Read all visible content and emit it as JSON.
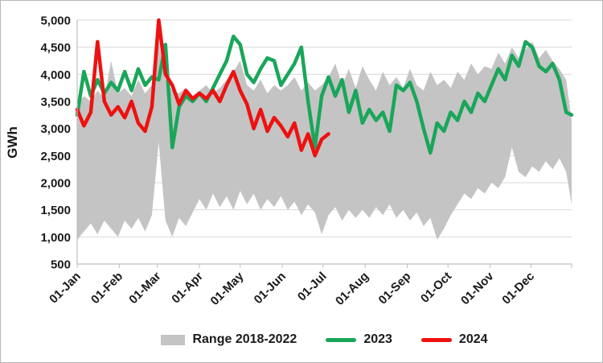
{
  "chart_data": {
    "type": "area",
    "description": "Daily GWh values: grey band = min/max range 2018-2022, green line = 2023, red line = 2024 (ends early July)",
    "title": "",
    "ylabel": "GWh",
    "ylim": [
      500,
      5000
    ],
    "y_tick_step": 500,
    "y_tick_labels": [
      "5,000",
      "4,500",
      "4,000",
      "3,500",
      "3,000",
      "2,500",
      "2,000",
      "1,500",
      "1,000",
      "500"
    ],
    "x_unit": "day of year",
    "x_tick_days": [
      1,
      32,
      60,
      91,
      121,
      152,
      182,
      213,
      244,
      274,
      305,
      335
    ],
    "x_tick_labels": [
      "01-Jan",
      "01-Feb",
      "01-Mar",
      "01-Apr",
      "01-May",
      "01-Jun",
      "01-Jul",
      "01-Aug",
      "01-Sep",
      "01-Oct",
      "01-Nov",
      "01-Dec"
    ],
    "grid": "horizontal",
    "legend_position": "bottom",
    "colors": {
      "range": "#c4c4c4",
      "y2023": "#1aa65a",
      "y2024": "#ee1111",
      "grid": "#d9d9d9",
      "axis": "#bfbfbf",
      "text": "#1a1a1a"
    },
    "legend": [
      {
        "label": "Range 2018-2022",
        "color": "#c4c4c4",
        "kind": "area"
      },
      {
        "label": "2023",
        "color": "#1aa65a",
        "kind": "line"
      },
      {
        "label": "2024",
        "color": "#ee1111",
        "kind": "line"
      }
    ],
    "sample_days": [
      1,
      6,
      11,
      16,
      21,
      26,
      31,
      36,
      41,
      46,
      51,
      56,
      61,
      66,
      71,
      76,
      81,
      86,
      91,
      96,
      101,
      106,
      111,
      116,
      121,
      126,
      131,
      136,
      141,
      146,
      151,
      156,
      161,
      166,
      171,
      176,
      181,
      186,
      191,
      196,
      201,
      206,
      211,
      216,
      221,
      226,
      231,
      236,
      241,
      246,
      251,
      256,
      261,
      266,
      271,
      276,
      281,
      286,
      291,
      296,
      301,
      306,
      311,
      316,
      321,
      326,
      331,
      336,
      341,
      346,
      351,
      356,
      361,
      365
    ],
    "range": {
      "label": "Range 2018-2022",
      "high": [
        3450,
        3600,
        3500,
        3700,
        3550,
        4250,
        3650,
        3750,
        3600,
        3900,
        3650,
        3800,
        4600,
        3900,
        3700,
        3650,
        3750,
        3600,
        3700,
        3800,
        3650,
        3750,
        3900,
        4050,
        4250,
        3800,
        3700,
        3900,
        3650,
        3800,
        3700,
        3800,
        3950,
        3700,
        3850,
        3700,
        3800,
        3950,
        4200,
        3800,
        4100,
        3750,
        4150,
        3900,
        3700,
        4050,
        3800,
        3950,
        3750,
        4100,
        3800,
        3700,
        4050,
        3800,
        3900,
        3750,
        4050,
        3900,
        4200,
        4000,
        4150,
        4100,
        4400,
        4200,
        4500,
        4300,
        4450,
        4600,
        4300,
        4450,
        4250,
        4100,
        3900,
        3150
      ],
      "low": [
        950,
        1100,
        1250,
        1050,
        1300,
        1150,
        1000,
        1300,
        1150,
        1350,
        1100,
        1400,
        2750,
        1300,
        1000,
        1350,
        1200,
        1450,
        1700,
        1500,
        1800,
        1550,
        1750,
        1500,
        1850,
        1600,
        1800,
        1500,
        1700,
        1550,
        1750,
        1500,
        1650,
        1400,
        1600,
        1450,
        1050,
        1400,
        1550,
        1300,
        1500,
        1350,
        1500,
        1350,
        1550,
        1400,
        1600,
        1350,
        1500,
        1300,
        1450,
        1200,
        1350,
        950,
        1150,
        1400,
        1600,
        1800,
        1700,
        1900,
        1800,
        2000,
        1900,
        2100,
        2650,
        2200,
        2100,
        2300,
        2200,
        2400,
        2250,
        2450,
        2200,
        1600
      ]
    },
    "series": [
      {
        "name": "2023",
        "color": "#1aa65a",
        "values": [
          3250,
          4050,
          3600,
          3900,
          3650,
          3850,
          3700,
          4050,
          3700,
          4100,
          3800,
          3950,
          3900,
          4550,
          2650,
          3400,
          3600,
          3500,
          3650,
          3500,
          3750,
          4000,
          4250,
          4700,
          4550,
          4000,
          3850,
          4100,
          4300,
          4250,
          3800,
          4000,
          4200,
          4500,
          3500,
          2650,
          3600,
          3950,
          3600,
          3900,
          3300,
          3700,
          3100,
          3350,
          3150,
          3300,
          2950,
          3800,
          3700,
          3850,
          3500,
          3000,
          2550,
          3100,
          2950,
          3300,
          3150,
          3500,
          3300,
          3650,
          3500,
          3800,
          4100,
          3900,
          4350,
          4150,
          4600,
          4500,
          4150,
          4050,
          4200,
          3900,
          3300,
          3250
        ]
      },
      {
        "name": "2024",
        "color": "#ee1111",
        "values": [
          3350,
          3050,
          3300,
          4600,
          3500,
          3250,
          3400,
          3200,
          3500,
          3100,
          2950,
          3400,
          5000,
          4000,
          3800,
          3450,
          3700,
          3550,
          3650,
          3550,
          3700,
          3500,
          3800,
          4050,
          3700,
          3450,
          3000,
          3350,
          2950,
          3200,
          3050,
          2850,
          3100,
          2600,
          2900,
          2500,
          2800,
          2900
        ]
      }
    ]
  }
}
